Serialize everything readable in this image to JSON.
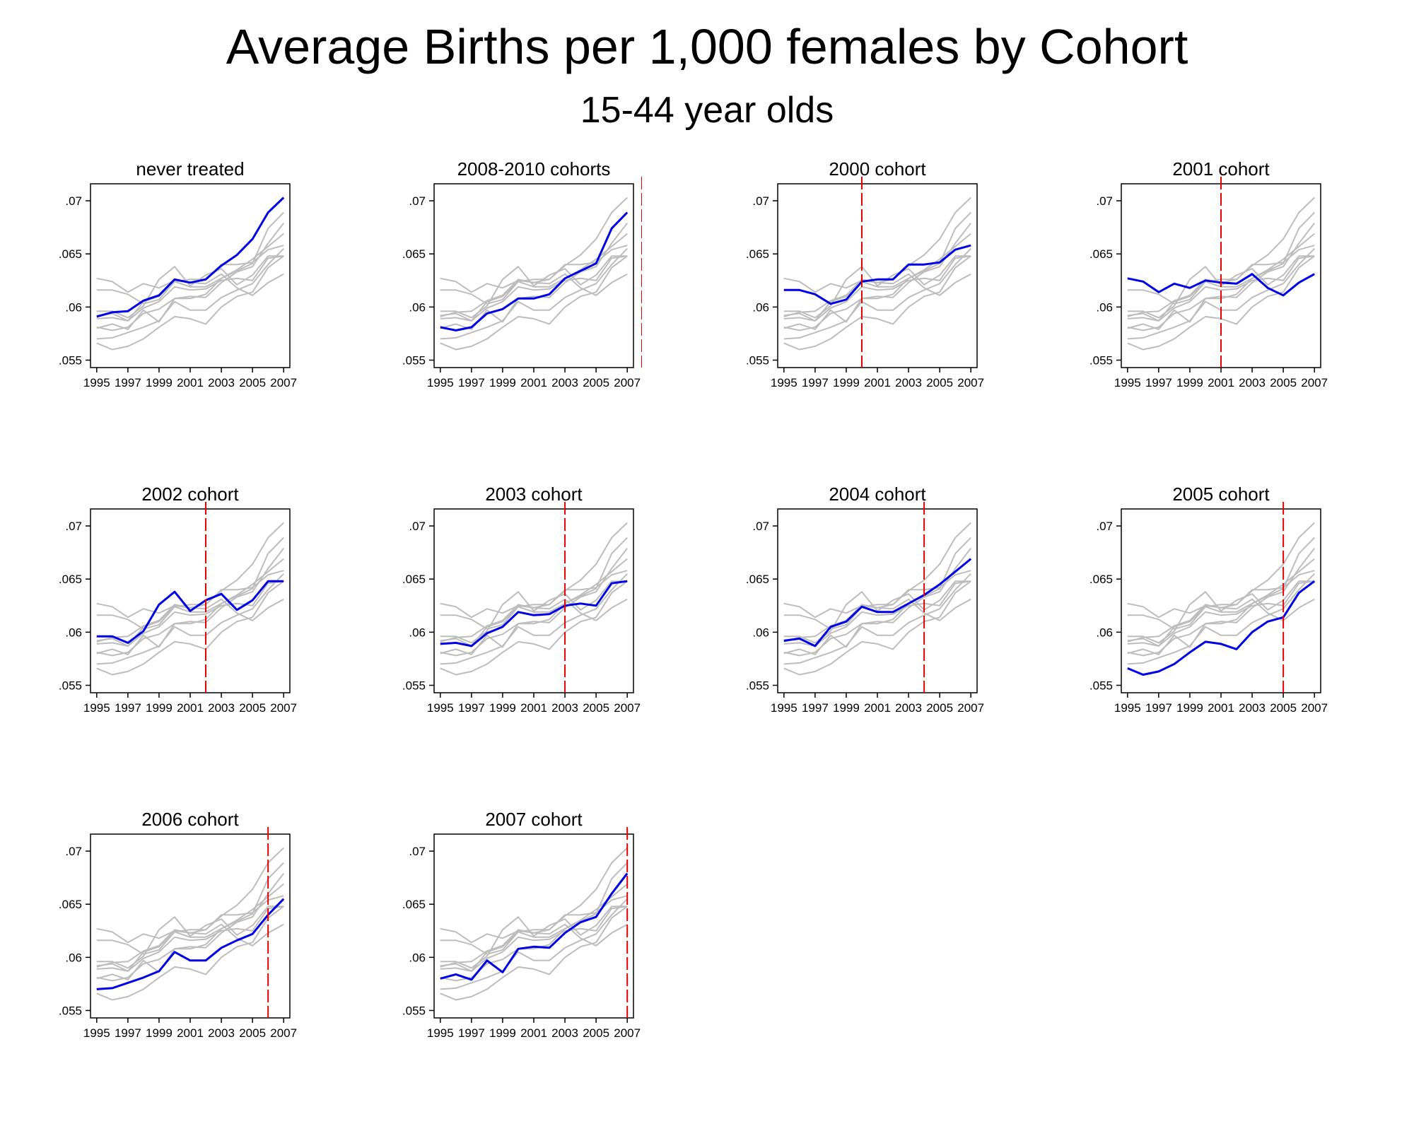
{
  "title": "Average Births per 1,000 females by Cohort",
  "subtitle": "15-44 year olds",
  "colors": {
    "highlight": "#0000e6",
    "background_series": "#bdbdbd",
    "treatment_line": "#e60000",
    "axis": "#000000"
  },
  "chart_data": {
    "type": "line",
    "x": [
      1995,
      1996,
      1997,
      1998,
      1999,
      2000,
      2001,
      2002,
      2003,
      2004,
      2005,
      2006,
      2007
    ],
    "xticks": [
      "1995",
      "1997",
      "1999",
      "2001",
      "2003",
      "2005",
      "2007"
    ],
    "yticks": [
      ".055",
      ".06",
      ".065",
      ".07"
    ],
    "ytick_values": [
      0.055,
      0.06,
      0.065,
      0.07
    ],
    "ylim": [
      0.0543,
      0.0716
    ],
    "xlim": [
      1994.6,
      2007.4
    ],
    "grid": false,
    "legend": false,
    "series": [
      {
        "values": [
          0.0591,
          0.0595,
          0.0596,
          0.0606,
          0.0611,
          0.0626,
          0.0623,
          0.0626,
          0.0639,
          0.0649,
          0.0664,
          0.0689,
          0.0703
        ]
      },
      {
        "values": [
          0.0581,
          0.0578,
          0.0581,
          0.0594,
          0.0598,
          0.0608,
          0.0608,
          0.0612,
          0.0627,
          0.0634,
          0.0641,
          0.0674,
          0.0689
        ]
      },
      {
        "values": [
          0.0616,
          0.0616,
          0.0612,
          0.0603,
          0.0607,
          0.0624,
          0.0626,
          0.0626,
          0.064,
          0.064,
          0.0642,
          0.0654,
          0.0658
        ]
      },
      {
        "values": [
          0.0627,
          0.0624,
          0.0614,
          0.0622,
          0.0618,
          0.0625,
          0.0623,
          0.0622,
          0.0631,
          0.0618,
          0.0611,
          0.0623,
          0.0631
        ]
      },
      {
        "values": [
          0.0596,
          0.0596,
          0.059,
          0.0601,
          0.0626,
          0.0638,
          0.062,
          0.063,
          0.0636,
          0.0621,
          0.063,
          0.0648,
          0.0648
        ]
      },
      {
        "values": [
          0.0589,
          0.059,
          0.0587,
          0.0599,
          0.0605,
          0.0619,
          0.0616,
          0.0617,
          0.0625,
          0.0627,
          0.0625,
          0.0646,
          0.0648
        ]
      },
      {
        "values": [
          0.0592,
          0.0594,
          0.0587,
          0.0605,
          0.061,
          0.0624,
          0.0619,
          0.0619,
          0.0627,
          0.0635,
          0.0645,
          0.0657,
          0.0669
        ]
      },
      {
        "values": [
          0.0566,
          0.056,
          0.0563,
          0.057,
          0.0581,
          0.0591,
          0.0589,
          0.0584,
          0.06,
          0.061,
          0.0614,
          0.0637,
          0.0648
        ]
      },
      {
        "values": [
          0.057,
          0.0571,
          0.0576,
          0.0581,
          0.0587,
          0.0605,
          0.0597,
          0.0597,
          0.0609,
          0.0616,
          0.0622,
          0.064,
          0.0655
        ]
      },
      {
        "values": [
          0.058,
          0.0584,
          0.0579,
          0.0597,
          0.0586,
          0.0608,
          0.061,
          0.0609,
          0.0623,
          0.0633,
          0.0638,
          0.066,
          0.0679
        ]
      }
    ],
    "panels": [
      {
        "title": "never treated",
        "highlight": 0,
        "treatment_year": null
      },
      {
        "title": "2008-2010 cohorts",
        "highlight": 1,
        "treatment_year": 2008
      },
      {
        "title": "2000 cohort",
        "highlight": 2,
        "treatment_year": 2000
      },
      {
        "title": "2001 cohort",
        "highlight": 3,
        "treatment_year": 2001
      },
      {
        "title": "2002 cohort",
        "highlight": 4,
        "treatment_year": 2002
      },
      {
        "title": "2003 cohort",
        "highlight": 5,
        "treatment_year": 2003
      },
      {
        "title": "2004 cohort",
        "highlight": 6,
        "treatment_year": 2004
      },
      {
        "title": "2005 cohort",
        "highlight": 7,
        "treatment_year": 2005
      },
      {
        "title": "2006 cohort",
        "highlight": 8,
        "treatment_year": 2006
      },
      {
        "title": "2007 cohort",
        "highlight": 9,
        "treatment_year": 2007
      }
    ]
  }
}
